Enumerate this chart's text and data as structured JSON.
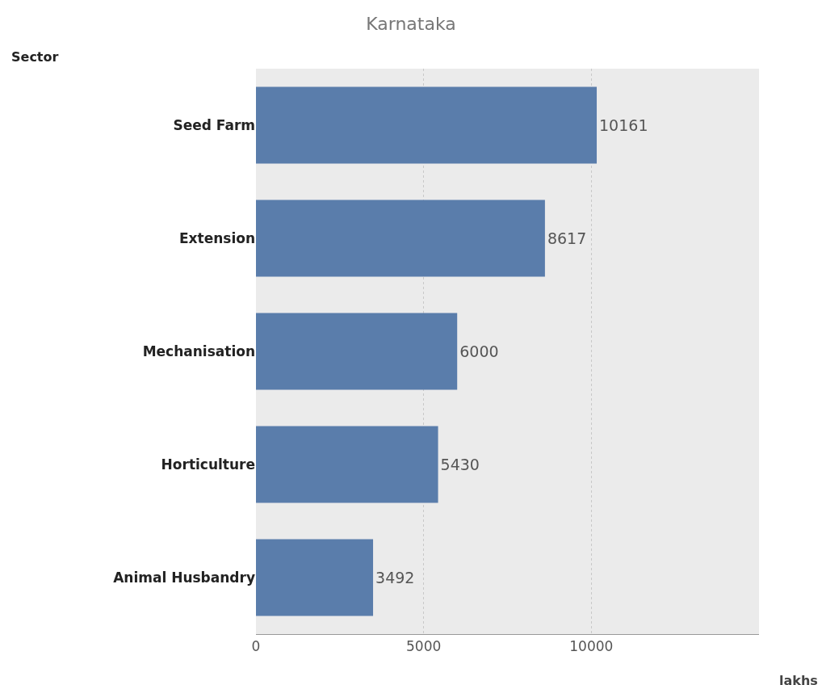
{
  "chart_data": {
    "type": "bar",
    "orientation": "horizontal",
    "title": "Karnataka",
    "annotations": [
      "Sector"
    ],
    "xlabel": "lakhs",
    "categories": [
      "Seed Farm",
      "Extension",
      "Mechanisation",
      "Horticulture",
      "Animal Husbandry"
    ],
    "values": [
      10161,
      8617,
      6000,
      5430,
      3492
    ],
    "color": "#5a7dab",
    "xlim": [
      0,
      15000
    ],
    "xticks": [
      0,
      5000,
      10000
    ],
    "grid": "x",
    "data_labels": true
  }
}
